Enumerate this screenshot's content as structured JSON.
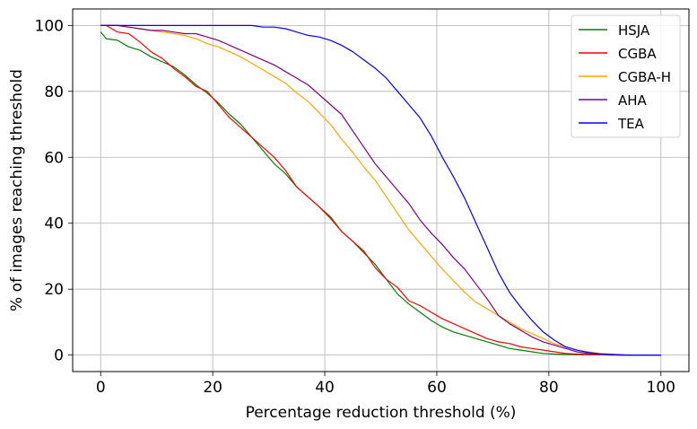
{
  "chart_data": {
    "type": "line",
    "title": "",
    "xlabel": "Percentage reduction threshold (%)",
    "ylabel": "% of images reaching threshold",
    "xlim": [
      -5,
      105
    ],
    "ylim": [
      -5,
      105
    ],
    "xticks": [
      0,
      20,
      40,
      60,
      80,
      100
    ],
    "yticks": [
      0,
      20,
      40,
      60,
      80,
      100
    ],
    "xtick_labels": [
      "0",
      "20",
      "40",
      "60",
      "80",
      "100"
    ],
    "ytick_labels": [
      "0",
      "20",
      "40",
      "60",
      "80",
      "100"
    ],
    "grid": true,
    "legend_position": "top-right",
    "series": [
      {
        "name": "HSJA",
        "color": "#008000",
        "x": [
          0,
          1,
          3,
          5,
          7,
          9,
          11,
          13,
          15,
          17,
          19,
          21,
          23,
          25,
          27,
          29,
          31,
          33,
          35,
          37,
          39,
          41,
          43,
          45,
          47,
          49,
          51,
          53,
          55,
          57,
          59,
          61,
          63,
          65,
          67,
          69,
          71,
          73,
          75,
          77,
          79,
          81,
          83,
          85,
          87,
          89,
          91,
          93,
          95,
          97,
          100
        ],
        "y": [
          98,
          96,
          95.5,
          93.5,
          92.5,
          90.5,
          89,
          87.5,
          85,
          82,
          79.5,
          76.5,
          73,
          70,
          66,
          62,
          58,
          55,
          51,
          48,
          45,
          42,
          37.5,
          34.5,
          31,
          27.5,
          23,
          18.5,
          15.5,
          13,
          10.5,
          8.5,
          7,
          6,
          5,
          4,
          3,
          2,
          1.5,
          1,
          0.5,
          0.3,
          0.2,
          0.1,
          0.1,
          0.1,
          0,
          0,
          0,
          0,
          0
        ]
      },
      {
        "name": "CGBA",
        "color": "#ff0000",
        "x": [
          0,
          1,
          3,
          5,
          7,
          9,
          11,
          13,
          15,
          17,
          19,
          21,
          23,
          25,
          27,
          29,
          31,
          33,
          35,
          37,
          39,
          41,
          43,
          45,
          47,
          49,
          51,
          53,
          55,
          57,
          59,
          61,
          63,
          65,
          67,
          69,
          71,
          73,
          75,
          77,
          79,
          81,
          83,
          85,
          87,
          89,
          91,
          93,
          95,
          97,
          100
        ],
        "y": [
          100,
          100,
          98,
          97.5,
          95,
          92,
          90,
          87,
          84.5,
          81.5,
          80,
          76,
          72,
          69,
          66,
          63,
          60,
          56,
          51,
          48,
          45,
          41.5,
          37.5,
          34.5,
          31.5,
          26.5,
          23,
          20.5,
          16.5,
          15,
          13,
          11,
          9.5,
          8,
          6.5,
          5,
          4,
          3.5,
          2.5,
          2,
          1.5,
          1,
          0.5,
          0.3,
          0.2,
          0.1,
          0.1,
          0,
          0,
          0,
          0
        ]
      },
      {
        "name": "CGBA-H",
        "color": "#ffa500",
        "x": [
          0,
          1,
          3,
          5,
          7,
          9,
          11,
          13,
          15,
          17,
          19,
          21,
          23,
          25,
          27,
          29,
          31,
          33,
          35,
          37,
          39,
          41,
          43,
          45,
          47,
          49,
          51,
          53,
          55,
          57,
          59,
          61,
          63,
          65,
          67,
          69,
          71,
          73,
          75,
          77,
          79,
          81,
          83,
          85,
          87,
          89,
          91,
          93,
          95,
          97,
          100
        ],
        "y": [
          100,
          100,
          100,
          99.5,
          99,
          98.5,
          98,
          97.5,
          97,
          96,
          94.5,
          93.5,
          92,
          90.5,
          88.5,
          86.5,
          84.5,
          82.5,
          79.5,
          77,
          73.5,
          70,
          65.5,
          61.5,
          57,
          53,
          48,
          43,
          38,
          34,
          30,
          26,
          22.5,
          19,
          16,
          14,
          12,
          10,
          8,
          6.5,
          5,
          3.5,
          2.5,
          1.5,
          1,
          0.5,
          0.3,
          0.1,
          0,
          0,
          0
        ]
      },
      {
        "name": "AHA",
        "color": "#800080",
        "x": [
          0,
          1,
          3,
          5,
          7,
          9,
          11,
          13,
          15,
          17,
          19,
          21,
          23,
          25,
          27,
          29,
          31,
          33,
          35,
          37,
          39,
          41,
          43,
          45,
          47,
          49,
          51,
          53,
          55,
          57,
          59,
          61,
          63,
          65,
          67,
          69,
          71,
          73,
          75,
          77,
          79,
          81,
          83,
          85,
          87,
          89,
          91,
          93,
          95,
          97,
          100
        ],
        "y": [
          100,
          100,
          100,
          99.5,
          99,
          98.5,
          98.5,
          98,
          97.5,
          97.5,
          96.5,
          95.5,
          94,
          92.5,
          91,
          89.5,
          88,
          86,
          84,
          82,
          79,
          76,
          73,
          68,
          63,
          58,
          54,
          50,
          46,
          41,
          37,
          33.5,
          29.5,
          26,
          21.5,
          17,
          12,
          9.5,
          7.5,
          5.5,
          4,
          3,
          2,
          1,
          0.5,
          0.3,
          0.1,
          0,
          0,
          0,
          0
        ]
      },
      {
        "name": "TEA",
        "color": "#0000ff",
        "x": [
          0,
          1,
          3,
          5,
          7,
          9,
          11,
          13,
          15,
          17,
          19,
          21,
          23,
          25,
          27,
          29,
          31,
          33,
          35,
          37,
          39,
          41,
          43,
          45,
          47,
          49,
          51,
          53,
          55,
          57,
          59,
          61,
          63,
          65,
          67,
          69,
          71,
          73,
          75,
          77,
          79,
          81,
          83,
          85,
          87,
          89,
          91,
          93,
          95,
          97,
          100
        ],
        "y": [
          100,
          100,
          100,
          100,
          100,
          100,
          100,
          100,
          100,
          100,
          100,
          100,
          100,
          100,
          100,
          99.5,
          99.5,
          99,
          98,
          97,
          96.5,
          95.5,
          94,
          92,
          89.5,
          87,
          84,
          80,
          76,
          72,
          66.5,
          60,
          54,
          47.5,
          40,
          32.5,
          25,
          19,
          14.5,
          10.5,
          7,
          4.5,
          2.5,
          1.5,
          0.8,
          0.4,
          0.2,
          0.1,
          0,
          0,
          0
        ]
      }
    ]
  }
}
